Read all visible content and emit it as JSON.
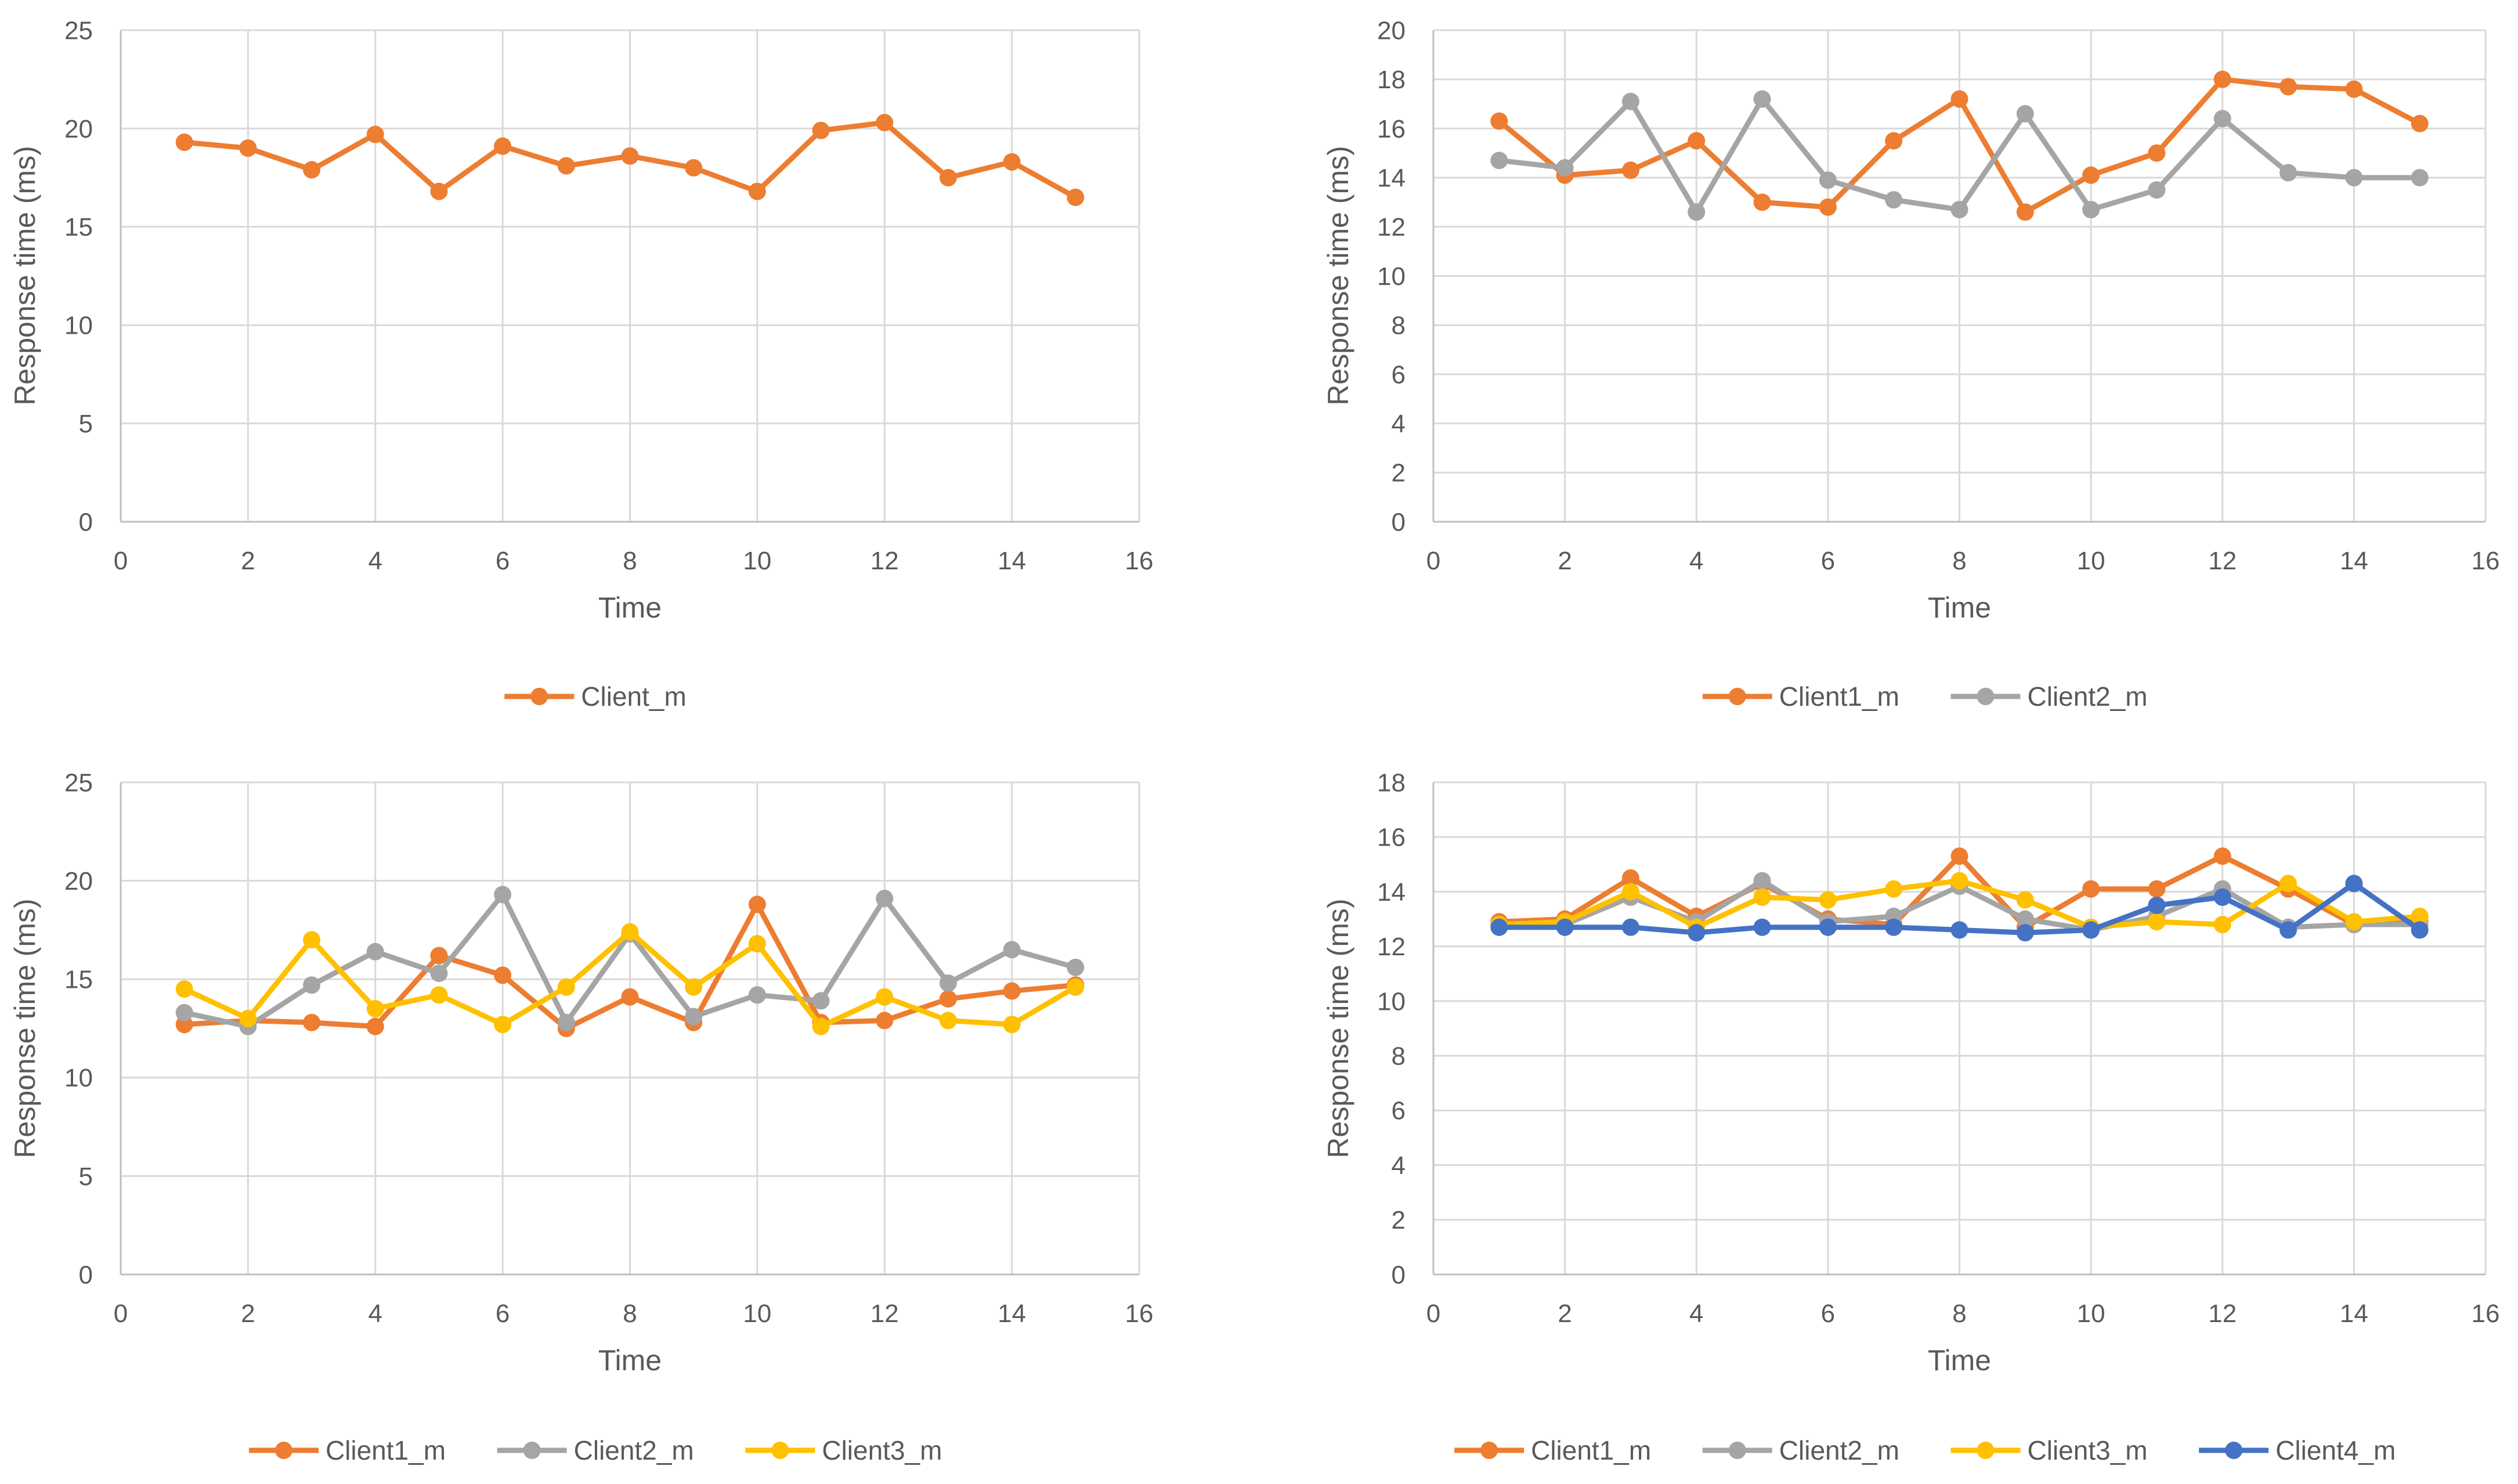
{
  "chart_data": [
    {
      "type": "line",
      "xlabel": "Time",
      "ylabel": "Response time (ms)",
      "xlim": [
        0,
        16
      ],
      "xticks": [
        0,
        2,
        4,
        6,
        8,
        10,
        12,
        14,
        16
      ],
      "ylim": [
        0,
        25
      ],
      "yticks": [
        0,
        5,
        10,
        15,
        20,
        25
      ],
      "grid": true,
      "legend_position": "bottom",
      "x": [
        1,
        2,
        3,
        4,
        5,
        6,
        7,
        8,
        9,
        10,
        11,
        12,
        13,
        14,
        15
      ],
      "series": [
        {
          "name": "Client_m",
          "color": "#ED7D31",
          "values": [
            19.3,
            19.0,
            17.9,
            19.7,
            16.8,
            19.1,
            18.1,
            18.6,
            18.0,
            16.8,
            19.9,
            20.3,
            17.5,
            18.3,
            16.5
          ]
        }
      ]
    },
    {
      "type": "line",
      "xlabel": "Time",
      "ylabel": "Response time (ms)",
      "xlim": [
        0,
        16
      ],
      "xticks": [
        0,
        2,
        4,
        6,
        8,
        10,
        12,
        14,
        16
      ],
      "ylim": [
        0,
        20
      ],
      "yticks": [
        0,
        2,
        4,
        6,
        8,
        10,
        12,
        14,
        16,
        18,
        20
      ],
      "grid": true,
      "legend_position": "bottom",
      "x": [
        1,
        2,
        3,
        4,
        5,
        6,
        7,
        8,
        9,
        10,
        11,
        12,
        13,
        14,
        15
      ],
      "series": [
        {
          "name": "Client1_m",
          "color": "#ED7D31",
          "values": [
            16.3,
            14.1,
            14.3,
            15.5,
            13.0,
            12.8,
            15.5,
            17.2,
            12.6,
            14.1,
            15.0,
            18.0,
            17.7,
            17.6,
            16.2
          ]
        },
        {
          "name": "Client2_m",
          "color": "#A5A5A5",
          "values": [
            14.7,
            14.4,
            17.1,
            12.6,
            17.2,
            13.9,
            13.1,
            12.7,
            16.6,
            12.7,
            13.5,
            16.4,
            14.2,
            14.0,
            14.0
          ]
        }
      ]
    },
    {
      "type": "line",
      "xlabel": "Time",
      "ylabel": "Response time (ms)",
      "xlim": [
        0,
        16
      ],
      "xticks": [
        0,
        2,
        4,
        6,
        8,
        10,
        12,
        14,
        16
      ],
      "ylim": [
        0,
        25
      ],
      "yticks": [
        0,
        5,
        10,
        15,
        20,
        25
      ],
      "grid": true,
      "legend_position": "bottom",
      "x": [
        1,
        2,
        3,
        4,
        5,
        6,
        7,
        8,
        9,
        10,
        11,
        12,
        13,
        14,
        15
      ],
      "series": [
        {
          "name": "Client1_m",
          "color": "#ED7D31",
          "values": [
            12.7,
            12.9,
            12.8,
            12.6,
            16.2,
            15.2,
            12.5,
            14.1,
            12.8,
            18.8,
            12.8,
            12.9,
            14.0,
            14.4,
            14.7
          ]
        },
        {
          "name": "Client2_m",
          "color": "#A5A5A5",
          "values": [
            13.3,
            12.6,
            14.7,
            16.4,
            15.3,
            19.3,
            12.8,
            17.3,
            13.1,
            14.2,
            13.9,
            19.1,
            14.8,
            16.5,
            15.6
          ]
        },
        {
          "name": "Client3_m",
          "color": "#FFC000",
          "values": [
            14.5,
            13.0,
            17.0,
            13.5,
            14.2,
            12.7,
            14.6,
            17.4,
            14.6,
            16.8,
            12.6,
            14.1,
            12.9,
            12.7,
            14.6
          ]
        }
      ]
    },
    {
      "type": "line",
      "xlabel": "Time",
      "ylabel": "Response time (ms)",
      "xlim": [
        0,
        16
      ],
      "xticks": [
        0,
        2,
        4,
        6,
        8,
        10,
        12,
        14,
        16
      ],
      "ylim": [
        0,
        18
      ],
      "yticks": [
        0,
        2,
        4,
        6,
        8,
        10,
        12,
        14,
        16,
        18
      ],
      "grid": true,
      "legend_position": "bottom",
      "x": [
        1,
        2,
        3,
        4,
        5,
        6,
        7,
        8,
        9,
        10,
        11,
        12,
        13,
        14,
        15
      ],
      "series": [
        {
          "name": "Client1_m",
          "color": "#ED7D31",
          "values": [
            12.9,
            13.0,
            14.5,
            13.1,
            14.3,
            13.0,
            12.8,
            15.3,
            12.7,
            14.1,
            14.1,
            15.3,
            14.1,
            12.8,
            12.9
          ]
        },
        {
          "name": "Client2_m",
          "color": "#A5A5A5",
          "values": [
            12.8,
            12.8,
            13.8,
            12.9,
            14.4,
            12.9,
            13.1,
            14.2,
            13.0,
            12.6,
            13.1,
            14.1,
            12.7,
            12.8,
            12.8
          ]
        },
        {
          "name": "Client3_m",
          "color": "#FFC000",
          "values": [
            12.8,
            12.9,
            14.0,
            12.7,
            13.8,
            13.7,
            14.1,
            14.4,
            13.7,
            12.7,
            12.9,
            12.8,
            14.3,
            12.9,
            13.1
          ]
        },
        {
          "name": "Client4_m",
          "color": "#4472C4",
          "values": [
            12.7,
            12.7,
            12.7,
            12.5,
            12.7,
            12.7,
            12.7,
            12.6,
            12.5,
            12.6,
            13.5,
            13.8,
            12.6,
            14.3,
            12.6
          ]
        }
      ]
    }
  ]
}
